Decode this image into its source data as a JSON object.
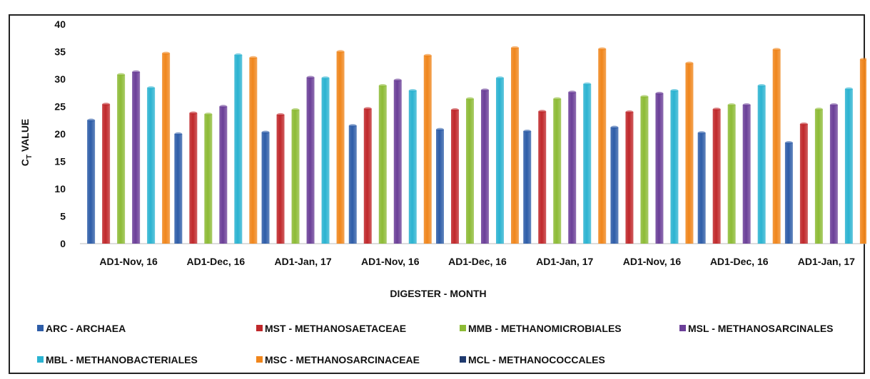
{
  "chart_data": {
    "type": "bar",
    "xlabel": "DIGESTER - MONTH",
    "ylabel": "C",
    "ylabel_sub": "T",
    "ylabel_rest": " VALUE",
    "ylim": [
      0,
      40
    ],
    "yticks": [
      0,
      5,
      10,
      15,
      20,
      25,
      30,
      35,
      40
    ],
    "grid": false,
    "legend_position": "bottom",
    "categories": [
      "AD1-Nov, 16",
      "AD1-Dec, 16",
      "AD1-Jan, 17",
      "AD1-Nov, 16",
      "AD1-Dec, 16",
      "AD1-Jan, 17",
      "AD1-Nov, 16",
      "AD1-Dec, 16",
      "AD1-Jan, 17"
    ],
    "series": [
      {
        "name": "ARC - ARCHAEA",
        "color": "#2e5da8",
        "values": [
          22.5,
          20.0,
          20.3,
          21.5,
          20.8,
          20.5,
          21.2,
          20.2,
          18.4
        ]
      },
      {
        "name": "MST - METHANOSAETACEAE",
        "color": "#c0282b",
        "values": [
          25.4,
          23.8,
          23.5,
          24.6,
          24.4,
          24.1,
          24.0,
          24.5,
          21.8
        ]
      },
      {
        "name": "MMB - METHANOMICROBIALES",
        "color": "#8dbb36",
        "values": [
          30.8,
          23.6,
          24.4,
          28.8,
          26.4,
          26.4,
          26.8,
          25.3,
          24.5
        ]
      },
      {
        "name": "MSL - METHANOSARCINALES",
        "color": "#6b3f98",
        "values": [
          31.3,
          25.0,
          30.3,
          29.8,
          28.0,
          27.6,
          27.4,
          25.3,
          25.3
        ]
      },
      {
        "name": "MBL - METHANOBACTERIALES",
        "color": "#2bb3d1",
        "values": [
          28.4,
          34.4,
          30.2,
          27.9,
          30.2,
          29.1,
          27.9,
          28.8,
          28.2
        ]
      },
      {
        "name": "MSC - METHANOSARCINACEAE",
        "color": "#f0861c",
        "values": [
          34.7,
          33.9,
          35.0,
          34.3,
          35.7,
          35.5,
          32.9,
          35.4,
          33.6
        ]
      },
      {
        "name": "MCL - METHANOCOCCALES",
        "color": "#1f3a6e",
        "values": [
          0,
          0,
          0,
          0,
          0,
          0,
          0,
          0,
          0
        ]
      }
    ]
  }
}
